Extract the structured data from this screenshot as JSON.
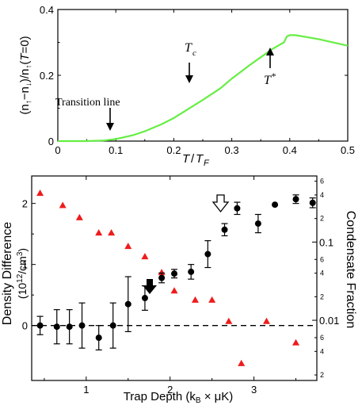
{
  "chart_data": [
    {
      "type": "line",
      "xlabel": "T/T_F",
      "ylabel": "(n↑−n↓)/n↑(T=0)",
      "xlim": [
        0,
        0.5
      ],
      "ylim": [
        0,
        0.4
      ],
      "xticks": [
        "0",
        "0.1",
        "0.2",
        "0.3",
        "0.4",
        "0.5"
      ],
      "yticks": [
        "0",
        "0.2",
        "0.4"
      ],
      "line_color": "#66ee44",
      "series": [
        {
          "x": [
            0.0,
            0.05,
            0.08,
            0.1,
            0.13,
            0.15,
            0.18,
            0.2,
            0.22,
            0.25,
            0.28,
            0.3,
            0.33,
            0.35,
            0.37,
            0.39,
            0.395,
            0.4,
            0.41,
            0.45,
            0.5
          ],
          "y": [
            0.0,
            0.0,
            0.002,
            0.006,
            0.018,
            0.03,
            0.052,
            0.07,
            0.092,
            0.125,
            0.16,
            0.19,
            0.23,
            0.255,
            0.28,
            0.3,
            0.318,
            0.322,
            0.322,
            0.31,
            0.29
          ]
        }
      ],
      "annotations": [
        {
          "text": "Transition line",
          "x": 0.1
        },
        {
          "text": "T_c",
          "x": 0.245
        },
        {
          "text": "T*",
          "x": 0.4
        }
      ]
    },
    {
      "type": "scatter",
      "xlabel": "Trap Depth (k_B × μK)",
      "ylabel": "Density Difference",
      "ylabel2": "(10¹²/cm³)",
      "ylabel_right": "Condensate Fraction",
      "xlim": [
        0.35,
        3.75
      ],
      "ylim": [
        -0.9,
        2.45
      ],
      "xticks": [
        "1",
        "2",
        "3"
      ],
      "yticks": [
        "0",
        "1",
        "2"
      ],
      "right_axis": {
        "scale": "log",
        "major_labels": [
          "0.1",
          "0.01"
        ],
        "minor_labels": [
          "6",
          "4",
          "2",
          "6",
          "4",
          "2",
          "6",
          "4",
          "2"
        ]
      },
      "reference_line_y": 0,
      "series": [
        {
          "marker": "circle",
          "color": "#000000",
          "x": [
            0.45,
            0.65,
            0.8,
            0.95,
            1.15,
            1.32,
            1.5,
            1.7,
            1.9,
            2.05,
            2.25,
            2.45,
            2.65,
            2.8,
            3.05,
            3.25,
            3.5,
            3.7
          ],
          "y": [
            0.0,
            -0.02,
            -0.02,
            0.0,
            -0.2,
            0.0,
            0.35,
            0.45,
            0.78,
            0.85,
            0.88,
            1.17,
            1.57,
            1.92,
            1.67,
            1.98,
            2.07,
            2.01
          ],
          "err": [
            0.15,
            0.28,
            0.28,
            0.37,
            0.2,
            0.37,
            0.45,
            0.2,
            0.08,
            0.07,
            0.12,
            0.22,
            0.1,
            0.1,
            0.15,
            0.0,
            0.07,
            0.08
          ]
        },
        {
          "marker": "triangle",
          "color": "#ee1c1c",
          "x": [
            0.45,
            0.72,
            0.92,
            1.15,
            1.3,
            1.5,
            1.7,
            1.9,
            2.05,
            2.3,
            2.5,
            2.7,
            2.85,
            3.15,
            3.5
          ],
          "y": [
            2.17,
            1.97,
            1.77,
            1.52,
            1.52,
            1.3,
            1.13,
            0.87,
            0.57,
            0.42,
            0.42,
            0.07,
            -0.62,
            0.07,
            -0.28
          ]
        }
      ],
      "annotations": [
        {
          "type": "filled-down-arrow",
          "x": 1.3
        },
        {
          "type": "open-down-arrow",
          "x": 2.55
        }
      ]
    }
  ]
}
